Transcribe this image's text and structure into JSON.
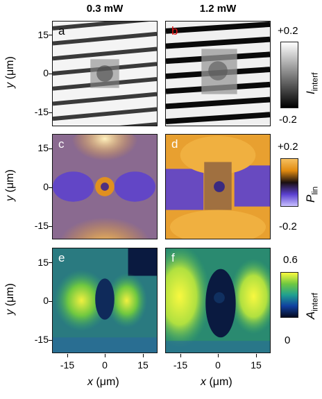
{
  "columns": {
    "left_title": "0.3 mW",
    "right_title": "1.2 mW"
  },
  "panels": {
    "a": "a",
    "b": "b",
    "c": "c",
    "d": "d",
    "e": "e",
    "f": "f"
  },
  "axes": {
    "ylabel_sym": "y",
    "ylabel_unit": "(μm)",
    "xlabel_sym": "x",
    "xlabel_unit": "(μm)",
    "yticks": [
      "15",
      "0",
      "-15"
    ],
    "xticks": [
      "-15",
      "0",
      "15"
    ]
  },
  "colorbars": {
    "interf": {
      "sym": "I",
      "sub": "interf",
      "max": "+0.2",
      "min": "-0.2"
    },
    "lin": {
      "sym": "P",
      "sub": "lin",
      "max": "+0.2",
      "min": "-0.2"
    },
    "ainterf": {
      "sym": "A",
      "sub": "interf",
      "max": "0.6",
      "min": "0"
    }
  },
  "colors": {
    "panel_b_label": "#e01010",
    "orange": "#f0a020",
    "purple": "#5a40d0",
    "dark_blue": "#0a1a40",
    "green": "#50c040",
    "yellow": "#f0f040"
  }
}
